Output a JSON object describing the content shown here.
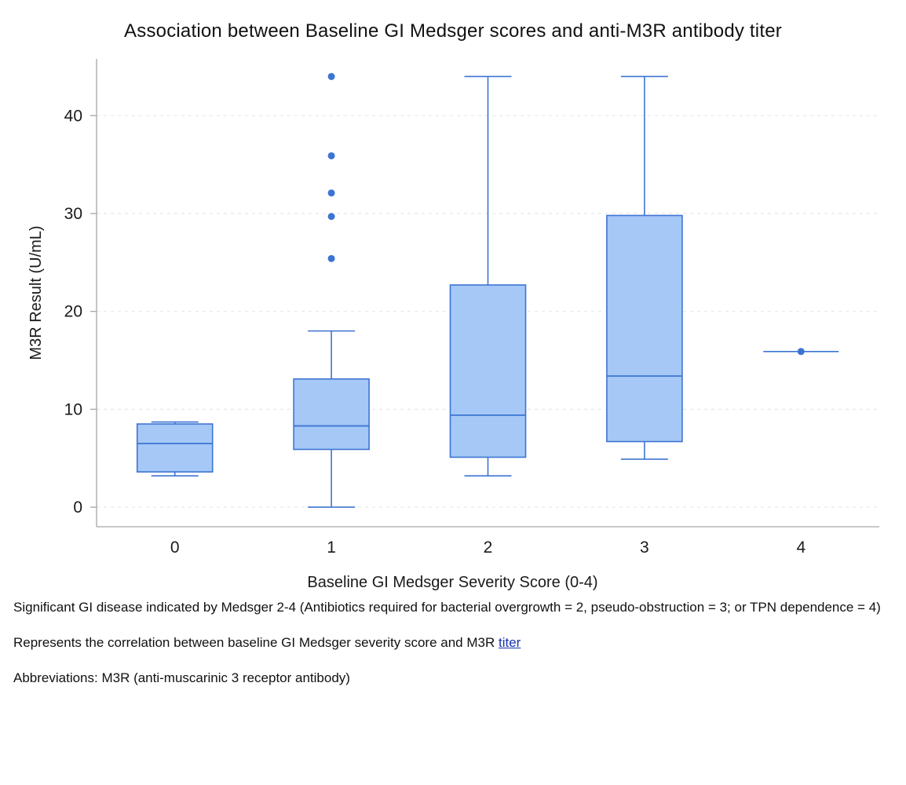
{
  "chart_data": {
    "type": "boxplot",
    "title": "Association between Baseline GI Medsger scores and anti-M3R antibody titer",
    "xlabel": "Baseline GI Medsger Severity Score (0-4)",
    "ylabel": "M3R Result (U/mL)",
    "categories": [
      "0",
      "1",
      "2",
      "3",
      "4"
    ],
    "yticks": [
      0,
      10,
      20,
      30,
      40
    ],
    "ylim": [
      -2,
      45.8
    ],
    "grid": "horizontal-dashed",
    "legend": "none",
    "boxes": [
      {
        "category": "0",
        "whisker_low": 3.2,
        "q1": 3.6,
        "median": 6.5,
        "q3": 8.5,
        "whisker_high": 8.7,
        "outliers": []
      },
      {
        "category": "1",
        "whisker_low": 0,
        "q1": 5.9,
        "median": 8.3,
        "q3": 13.1,
        "whisker_high": 18,
        "outliers": [
          25.4,
          29.7,
          32.1,
          35.9,
          44
        ]
      },
      {
        "category": "2",
        "whisker_low": 3.2,
        "q1": 5.1,
        "median": 9.4,
        "q3": 22.7,
        "whisker_high": 44,
        "outliers": []
      },
      {
        "category": "3",
        "whisker_low": 4.9,
        "q1": 6.7,
        "median": 13.4,
        "q3": 29.8,
        "whisker_high": 44,
        "outliers": []
      },
      {
        "category": "4",
        "single_point": 15.9,
        "outliers": []
      }
    ],
    "colors": {
      "box_fill": "#a5c8f6",
      "box_stroke": "#3d74d3",
      "point": "#3d74d3",
      "gridline": "#e7e7e7",
      "axis": "#a6a6a6",
      "text": "#1a1a1a"
    }
  },
  "footnotes": {
    "significance": "Significant GI disease indicated by Medsger 2-4 (Antibiotics required for bacterial overgrowth = 2, pseudo-obstruction = 3; or TPN dependence = 4)",
    "correlation_text": "Represents the correlation between baseline GI Medsger severity score and M3R ",
    "correlation_link": "titer",
    "abbreviations": "Abbreviations: M3R (anti-muscarinic 3 receptor antibody)"
  }
}
